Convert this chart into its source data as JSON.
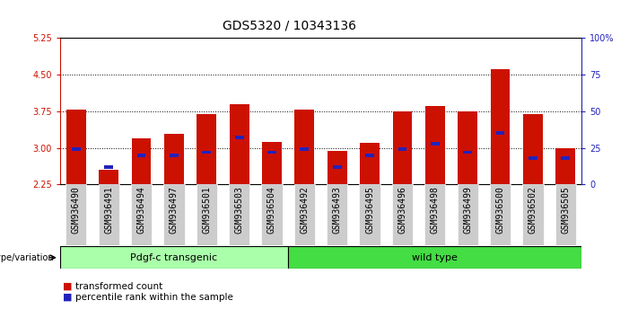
{
  "title": "GDS5320 / 10343136",
  "samples": [
    "GSM936490",
    "GSM936491",
    "GSM936494",
    "GSM936497",
    "GSM936501",
    "GSM936503",
    "GSM936504",
    "GSM936492",
    "GSM936493",
    "GSM936495",
    "GSM936496",
    "GSM936498",
    "GSM936499",
    "GSM936500",
    "GSM936502",
    "GSM936505"
  ],
  "red_values": [
    3.78,
    2.55,
    3.2,
    3.28,
    3.7,
    3.9,
    3.12,
    3.78,
    2.93,
    3.1,
    3.75,
    3.85,
    3.75,
    4.62,
    3.7,
    3.0
  ],
  "blue_percentiles": [
    24,
    12,
    20,
    20,
    22,
    32,
    22,
    24,
    12,
    20,
    24,
    28,
    22,
    35,
    18,
    18
  ],
  "ylim_left": [
    2.25,
    5.25
  ],
  "ylim_right": [
    0,
    100
  ],
  "yticks_left": [
    2.25,
    3.0,
    3.75,
    4.5,
    5.25
  ],
  "yticks_right": [
    0,
    25,
    50,
    75,
    100
  ],
  "ytick_labels_right": [
    "0",
    "25",
    "50",
    "75",
    "100%"
  ],
  "grid_lines": [
    3.0,
    3.75,
    4.5
  ],
  "bar_bottom": 2.25,
  "bar_width": 0.6,
  "red_color": "#cc1100",
  "blue_color": "#2222bb",
  "group1_label": "Pdgf-c transgenic",
  "group2_label": "wild type",
  "group1_count": 7,
  "group1_color": "#aaffaa",
  "group2_color": "#44dd44",
  "genotype_label": "genotype/variation",
  "legend1": "transformed count",
  "legend2": "percentile rank within the sample",
  "title_fontsize": 10,
  "tick_fontsize": 7,
  "annot_fontsize": 8,
  "sample_bg_color": "#cccccc"
}
